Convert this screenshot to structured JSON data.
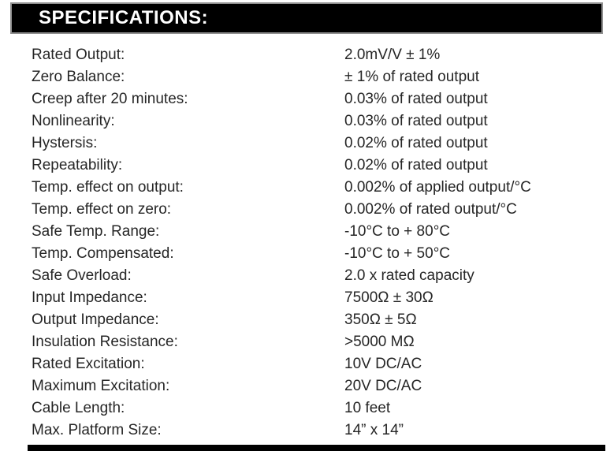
{
  "colors": {
    "header_bg": "#000000",
    "header_text": "#ffffff",
    "header_border": "#8f8f8f",
    "body_text": "#262626",
    "page_bg": "#ffffff"
  },
  "header": {
    "title": "SPECIFICATIONS:"
  },
  "specs": {
    "rows": [
      {
        "label": "Rated Output:",
        "value": "2.0mV/V ± 1%"
      },
      {
        "label": "Zero Balance:",
        "value": "± 1% of rated output"
      },
      {
        "label": "Creep after 20 minutes:",
        "value": "0.03% of rated output"
      },
      {
        "label": "Nonlinearity:",
        "value": "0.03% of rated output"
      },
      {
        "label": "Hystersis:",
        "value": "0.02% of rated output"
      },
      {
        "label": "Repeatability:",
        "value": "0.02% of rated output"
      },
      {
        "label": "Temp. effect on output:",
        "value": "0.002% of applied output/°C"
      },
      {
        "label": "Temp. effect on zero:",
        "value": "0.002% of rated output/°C"
      },
      {
        "label": "Safe Temp. Range:",
        "value": "-10°C to + 80°C"
      },
      {
        "label": "Temp. Compensated:",
        "value": "-10°C to + 50°C"
      },
      {
        "label": "Safe Overload:",
        "value": "2.0 x rated capacity"
      },
      {
        "label": "Input Impedance:",
        "value": "7500Ω ± 30Ω"
      },
      {
        "label": "Output Impedance:",
        "value": "350Ω ± 5Ω"
      },
      {
        "label": "Insulation Resistance:",
        "value": ">5000 MΩ"
      },
      {
        "label": "Rated Excitation:",
        "value": "10V DC/AC"
      },
      {
        "label": "Maximum Excitation:",
        "value": "20V DC/AC"
      },
      {
        "label": "Cable Length:",
        "value": "10 feet"
      },
      {
        "label": "Max. Platform Size:",
        "value": "14” x 14”"
      }
    ]
  }
}
